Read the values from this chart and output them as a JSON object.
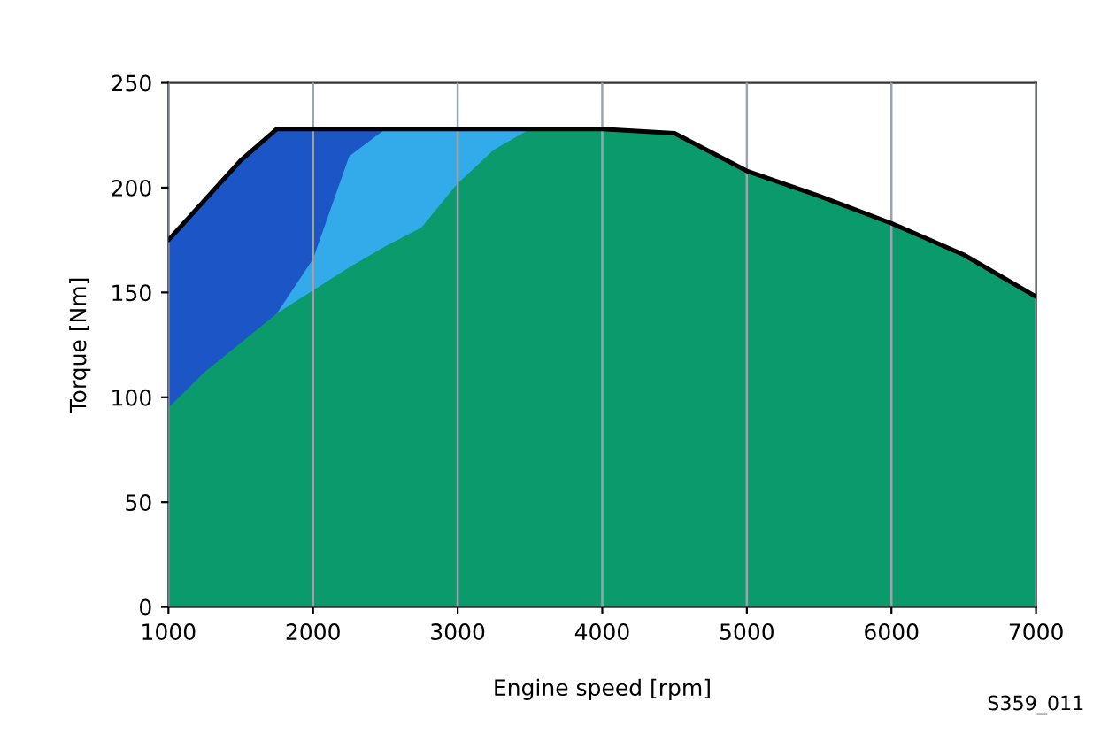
{
  "chart_data": {
    "type": "area",
    "xlabel": "Engine speed [rpm]",
    "ylabel": "Torque [Nm]",
    "x": [
      1000,
      1250,
      1500,
      1750,
      2000,
      2250,
      2500,
      2750,
      3000,
      3250,
      3500,
      4000,
      4500,
      5000,
      5500,
      6000,
      6500,
      7000
    ],
    "series": [
      {
        "color": "#1b55c6",
        "values": [
          175,
          194,
          213,
          228,
          228,
          228,
          228,
          null,
          null,
          null,
          null,
          null,
          null,
          null,
          null,
          null,
          null,
          null
        ]
      },
      {
        "color": "#33aaea",
        "values": [
          null,
          null,
          null,
          140,
          166,
          215,
          228,
          228,
          228,
          228,
          228,
          null,
          null,
          null,
          null,
          null,
          null,
          null
        ]
      },
      {
        "color": "#0b9a6c",
        "values": [
          95,
          112,
          126,
          140,
          151,
          162,
          172,
          181,
          202,
          218,
          228,
          228,
          226,
          208,
          196,
          183,
          168,
          148
        ]
      },
      {
        "type": "line",
        "color": "#000000",
        "values": [
          175,
          194,
          213,
          228,
          228,
          228,
          228,
          228,
          228,
          228,
          228,
          228,
          226,
          208,
          196,
          183,
          168,
          148
        ]
      }
    ],
    "xlim": [
      1000,
      7000
    ],
    "ylim": [
      0,
      250
    ],
    "xticks": [
      1000,
      2000,
      3000,
      4000,
      5000,
      6000,
      7000
    ],
    "yticks": [
      0,
      50,
      100,
      150,
      200,
      250
    ],
    "grid": "x",
    "annotations": [
      "S359_011"
    ]
  }
}
